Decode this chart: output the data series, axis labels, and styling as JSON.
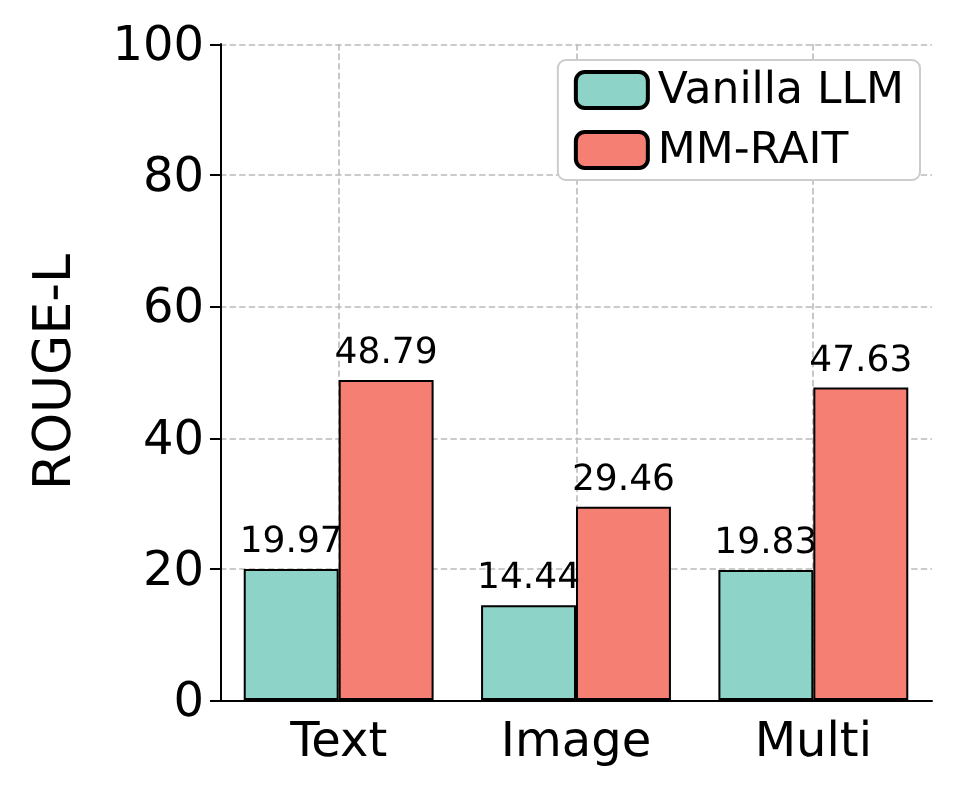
{
  "chart_data": {
    "type": "bar",
    "ylabel": "ROUGE-L",
    "categories": [
      "Text",
      "Image",
      "Multi"
    ],
    "series": [
      {
        "name": "Vanilla LLM",
        "color": "#8dd3c7",
        "values": [
          19.97,
          14.44,
          19.83
        ]
      },
      {
        "name": "MM-RAIT",
        "color": "#f47f72",
        "values": [
          48.79,
          29.46,
          47.63
        ]
      }
    ],
    "ylim": [
      0,
      100
    ],
    "yticks": [
      0,
      20,
      40,
      60,
      80,
      100
    ],
    "grid": true,
    "legend": "top right",
    "data_labels": true
  }
}
